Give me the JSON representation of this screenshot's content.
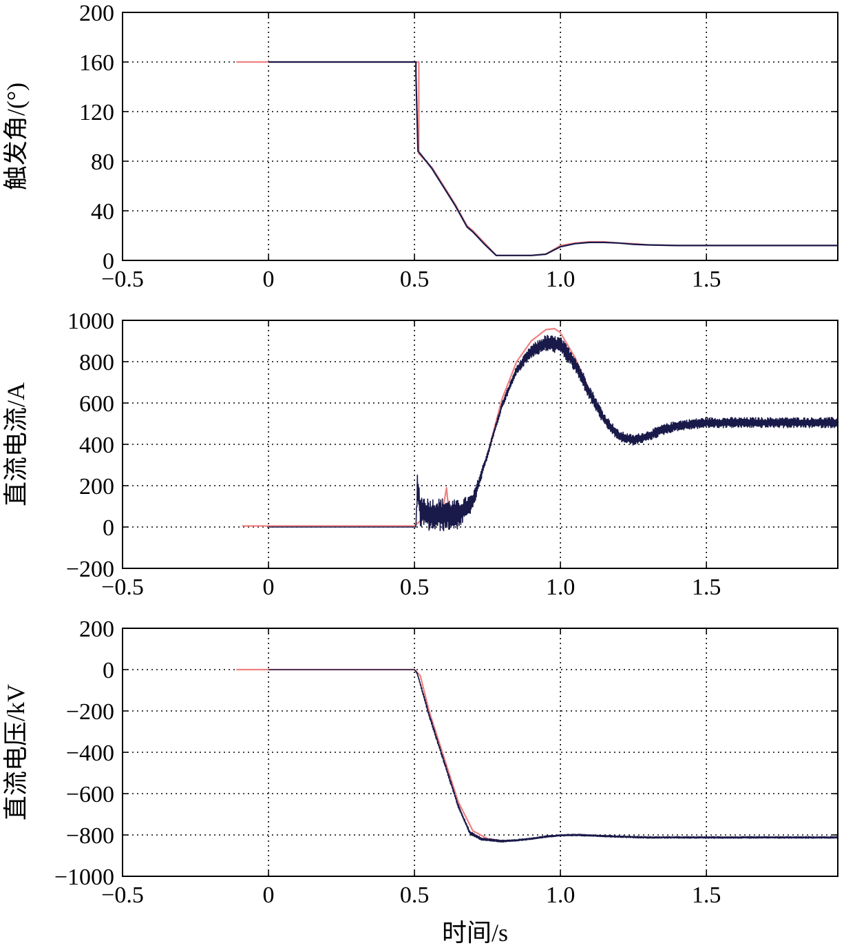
{
  "xlabel": "时间/s",
  "colors": {
    "series_a": "#1a1a4a",
    "series_b": "#f08080",
    "grid": "#000000",
    "frame": "#000000"
  },
  "chart_data": [
    {
      "type": "line",
      "title": "",
      "ylabel": "触发角/(°)",
      "xlabel": "",
      "xlim": [
        -0.5,
        1.95
      ],
      "ylim": [
        0,
        200
      ],
      "xticks": [
        -0.5,
        0,
        0.5,
        1.0,
        1.5
      ],
      "xtick_labels": [
        "−0.5",
        "0",
        "0.5",
        "1.0",
        "1.5"
      ],
      "yticks": [
        0,
        40,
        80,
        120,
        160,
        200
      ],
      "ytick_labels": [
        "0",
        "40",
        "80",
        "120",
        "160",
        "200"
      ],
      "grid": true,
      "series": [
        {
          "color": "#f08080",
          "x": [
            -0.11,
            0.0,
            0.505,
            0.505,
            0.515,
            0.515,
            0.56,
            0.6,
            0.64,
            0.68,
            0.7,
            0.74,
            0.78,
            0.82,
            0.9,
            0.95,
            1.0,
            1.05,
            1.1,
            1.15,
            1.2,
            1.25,
            1.3,
            1.4,
            1.5,
            1.6,
            1.7,
            1.8,
            1.95
          ],
          "y": [
            160,
            160,
            160,
            160,
            160,
            86,
            75,
            60,
            45,
            28,
            24,
            14,
            4,
            4,
            4,
            5,
            12,
            14,
            15,
            15,
            14,
            13.5,
            12.5,
            12,
            12,
            12,
            12,
            12,
            12
          ]
        },
        {
          "color": "#1a1a4a",
          "x": [
            0.0,
            0.5,
            0.5,
            0.505,
            0.505,
            0.512,
            0.52,
            0.56,
            0.6,
            0.64,
            0.68,
            0.7,
            0.74,
            0.78,
            0.82,
            0.9,
            0.95,
            1.0,
            1.05,
            1.1,
            1.15,
            1.2,
            1.25,
            1.3,
            1.4,
            1.5,
            1.6,
            1.7,
            1.8,
            1.95
          ],
          "y": [
            160,
            160,
            160,
            160,
            150,
            88,
            86,
            74,
            59,
            44,
            27,
            23,
            13,
            4,
            4,
            4,
            5,
            11,
            13.5,
            14.5,
            14.5,
            14,
            13,
            12.5,
            12,
            12,
            12,
            12,
            12,
            12
          ]
        }
      ]
    },
    {
      "type": "line",
      "title": "",
      "ylabel": "直流电流/A",
      "xlabel": "",
      "xlim": [
        -0.5,
        1.95
      ],
      "ylim": [
        -200,
        1000
      ],
      "xticks": [
        -0.5,
        0,
        0.5,
        1.0,
        1.5
      ],
      "xtick_labels": [
        "−0.5",
        "0",
        "0.5",
        "1.0",
        "1.5"
      ],
      "yticks": [
        -200,
        0,
        200,
        400,
        600,
        800,
        1000
      ],
      "ytick_labels": [
        "−200",
        "0",
        "200",
        "400",
        "600",
        "800",
        "1000"
      ],
      "grid": true,
      "series": [
        {
          "color": "#f08080",
          "x": [
            -0.09,
            0.0,
            0.5,
            0.52,
            0.55,
            0.6,
            0.61,
            0.615,
            0.62,
            0.65,
            0.7,
            0.75,
            0.8,
            0.85,
            0.9,
            0.95,
            0.98,
            1.0,
            1.05,
            1.1,
            1.15,
            1.2,
            1.25,
            1.3,
            1.35,
            1.4,
            1.5,
            1.6,
            1.7,
            1.8,
            1.95
          ],
          "y": [
            5,
            5,
            5,
            30,
            90,
            110,
            190,
            110,
            90,
            70,
            120,
            350,
            620,
            800,
            900,
            955,
            960,
            940,
            820,
            660,
            520,
            450,
            420,
            440,
            470,
            490,
            500,
            500,
            500,
            500,
            500
          ]
        },
        {
          "color": "#1a1a4a",
          "noise": true,
          "x": [
            0.0,
            0.5,
            0.505,
            0.51,
            0.52,
            0.55,
            0.6,
            0.65,
            0.7,
            0.75,
            0.8,
            0.85,
            0.9,
            0.95,
            1.0,
            1.05,
            1.1,
            1.15,
            1.2,
            1.25,
            1.3,
            1.35,
            1.4,
            1.5,
            1.6,
            1.7,
            1.8,
            1.95
          ],
          "y": [
            0,
            0,
            0,
            200,
            80,
            60,
            60,
            60,
            120,
            350,
            590,
            760,
            850,
            890,
            880,
            790,
            650,
            520,
            440,
            420,
            440,
            470,
            490,
            505,
            505,
            505,
            505,
            505
          ],
          "amp": [
            0,
            0,
            0,
            60,
            80,
            80,
            80,
            70,
            40,
            15,
            15,
            20,
            30,
            40,
            40,
            40,
            35,
            30,
            25,
            25,
            25,
            25,
            25,
            25,
            25,
            25,
            25,
            25
          ]
        }
      ]
    },
    {
      "type": "line",
      "title": "",
      "ylabel": "直流电压/kV",
      "xlabel": "时间/s",
      "xlim": [
        -0.5,
        1.95
      ],
      "ylim": [
        -1000,
        200
      ],
      "xticks": [
        -0.5,
        0,
        0.5,
        1.0,
        1.5
      ],
      "xtick_labels": [
        "−0.5",
        "0",
        "0.5",
        "1.0",
        "1.5"
      ],
      "yticks": [
        -1000,
        -800,
        -600,
        -400,
        -200,
        0,
        200
      ],
      "ytick_labels": [
        "−1000",
        "−800",
        "−600",
        "−400",
        "−200",
        "0",
        "200"
      ],
      "grid": true,
      "series": [
        {
          "color": "#f08080",
          "x": [
            -0.11,
            0.0,
            0.5,
            0.52,
            0.55,
            0.6,
            0.65,
            0.7,
            0.75,
            0.8,
            0.85,
            0.9,
            0.95,
            1.0,
            1.05,
            1.1,
            1.2,
            1.3,
            1.4,
            1.5,
            1.6,
            1.7,
            1.8,
            1.95
          ],
          "y": [
            0,
            0,
            0,
            -30,
            -200,
            -420,
            -640,
            -780,
            -818,
            -828,
            -826,
            -818,
            -808,
            -802,
            -800,
            -802,
            -808,
            -812,
            -812,
            -812,
            -812,
            -812,
            -812,
            -812
          ]
        },
        {
          "color": "#1a1a4a",
          "noise": true,
          "x": [
            0.0,
            0.5,
            0.51,
            0.55,
            0.6,
            0.65,
            0.69,
            0.73,
            0.8,
            0.85,
            0.9,
            0.95,
            1.0,
            1.05,
            1.1,
            1.2,
            1.3,
            1.4,
            1.5,
            1.6,
            1.7,
            1.8,
            1.95
          ],
          "y": [
            0,
            0,
            -20,
            -220,
            -440,
            -660,
            -790,
            -820,
            -830,
            -826,
            -818,
            -808,
            -802,
            -800,
            -802,
            -808,
            -812,
            -812,
            -812,
            -812,
            -812,
            -812,
            -812
          ],
          "amp": [
            0,
            0,
            5,
            10,
            10,
            10,
            8,
            6,
            5,
            4,
            4,
            4,
            4,
            4,
            4,
            4,
            4,
            4,
            4,
            4,
            4,
            4,
            4
          ]
        }
      ]
    }
  ]
}
